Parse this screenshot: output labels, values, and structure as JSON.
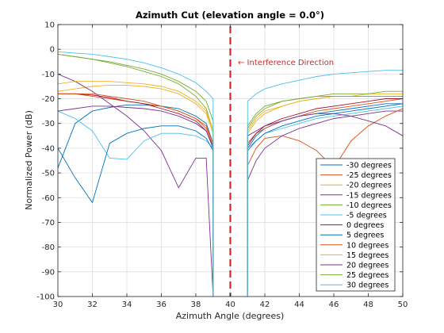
{
  "chart_data": {
    "type": "line",
    "title": "Azimuth Cut (elevation angle = 0.0°)",
    "xlabel": "Azimuth Angle (degrees)",
    "ylabel": "Normalized Power (dB)",
    "xlim": [
      30,
      50
    ],
    "ylim": [
      -100,
      10
    ],
    "xticks": [
      "30",
      "32",
      "34",
      "36",
      "38",
      "40",
      "42",
      "44",
      "46",
      "48",
      "50"
    ],
    "yticks": [
      "-100",
      "-90",
      "-80",
      "-70",
      "-60",
      "-50",
      "-40",
      "-30",
      "-20",
      "-10",
      "0",
      "10"
    ],
    "grid": true,
    "legend_position": "bottom-right",
    "annotation": "← Interference Direction",
    "annotation_color": "#d62728",
    "interference_line": {
      "x": 40,
      "color": "#d62728",
      "style": "dashed"
    },
    "series": [
      {
        "name": "-30 degrees",
        "color": "#0072BD",
        "left": {
          "x": [
            30,
            31,
            32,
            33,
            34,
            35,
            36,
            37,
            38,
            38.6,
            39
          ],
          "y": [
            -48,
            -30,
            -25,
            -23.5,
            -22.5,
            -22.5,
            -23,
            -24,
            -27,
            -30,
            -38
          ]
        },
        "right": {
          "x": [
            41,
            41.5,
            42,
            43,
            44,
            45,
            46,
            47,
            48,
            49,
            50
          ],
          "y": [
            -40,
            -35,
            -32,
            -29,
            -27,
            -26,
            -25,
            -24,
            -23,
            -22,
            -22
          ]
        }
      },
      {
        "name": "-25 degrees",
        "color": "#D95319",
        "left": {
          "x": [
            30,
            31,
            32,
            33,
            34,
            35,
            36,
            37,
            38,
            38.6,
            39
          ],
          "y": [
            -18,
            -18,
            -19,
            -20,
            -21,
            -22,
            -23,
            -25,
            -28,
            -31,
            -38
          ]
        },
        "right": {
          "x": [
            41,
            41.5,
            42,
            43,
            44,
            45,
            46,
            47,
            48,
            49,
            50
          ],
          "y": [
            -38,
            -34,
            -32,
            -29,
            -27,
            -25,
            -24,
            -23,
            -22,
            -21,
            -20
          ]
        }
      },
      {
        "name": "-20 degrees",
        "color": "#EDB120",
        "left": {
          "x": [
            30,
            31,
            32,
            33,
            34,
            35,
            36,
            37,
            38,
            38.6,
            39
          ],
          "y": [
            -17,
            -16,
            -15,
            -14.5,
            -14.5,
            -15,
            -16,
            -18,
            -22,
            -26,
            -34
          ]
        },
        "right": {
          "x": [
            41,
            41.5,
            42,
            43,
            44,
            45,
            46,
            47,
            48,
            49,
            50
          ],
          "y": [
            -34,
            -29,
            -26,
            -23,
            -21,
            -20,
            -19,
            -19,
            -18,
            -18,
            -18
          ]
        }
      },
      {
        "name": "-15 degrees",
        "color": "#7E2F8E",
        "left": {
          "x": [
            30,
            31,
            32,
            33,
            34,
            35,
            36,
            37,
            38,
            38.6,
            39
          ],
          "y": [
            -10,
            -13,
            -17,
            -22,
            -27,
            -33,
            -41,
            -56,
            -44,
            -44,
            -100
          ]
        },
        "right": {
          "x": [
            41,
            41.5,
            42,
            43,
            44,
            45,
            46,
            47,
            48,
            49,
            50
          ],
          "y": [
            -53,
            -45,
            -40,
            -35,
            -32,
            -30,
            -28,
            -27,
            -26,
            -25,
            -25
          ]
        }
      },
      {
        "name": "-10 degrees",
        "color": "#77AC30",
        "left": {
          "x": [
            30,
            31,
            32,
            33,
            34,
            35,
            36,
            37,
            38,
            38.6,
            39
          ],
          "y": [
            -2,
            -3,
            -4,
            -5.5,
            -7,
            -9,
            -11,
            -14,
            -19,
            -24,
            -33
          ]
        },
        "right": {
          "x": [
            41,
            41.5,
            42,
            43,
            44,
            45,
            46,
            47,
            48,
            49,
            50
          ],
          "y": [
            -32,
            -27,
            -24,
            -21,
            -20,
            -19,
            -18,
            -18,
            -18,
            -17,
            -17
          ]
        }
      },
      {
        "name": "-5 degrees",
        "color": "#4DBEEE",
        "left": {
          "x": [
            30,
            31,
            32,
            33,
            34,
            35,
            36,
            37,
            38,
            38.6,
            39
          ],
          "y": [
            -25,
            -28,
            -33,
            -44,
            -44.5,
            -37,
            -34,
            -34,
            -35,
            -37,
            -40
          ]
        },
        "right": {
          "x": [
            41,
            41.5,
            42,
            43,
            44,
            45,
            46,
            47,
            48,
            49,
            50
          ],
          "y": [
            -40,
            -37,
            -34,
            -32,
            -30,
            -28,
            -27,
            -26,
            -25,
            -24,
            -23
          ]
        }
      },
      {
        "name": "0 degrees",
        "color": "#A2142F",
        "left": {
          "x": [
            30,
            31,
            32,
            33,
            34,
            35,
            36,
            37,
            38,
            38.6,
            39
          ],
          "y": [
            -18,
            -18,
            -18.5,
            -19.5,
            -21,
            -22,
            -24,
            -26,
            -29,
            -33,
            -39
          ]
        },
        "right": {
          "x": [
            41,
            41.5,
            42,
            43,
            44,
            45,
            46,
            47,
            48,
            49,
            50
          ],
          "y": [
            -39,
            -34,
            -31,
            -28,
            -26,
            -24,
            -23,
            -22,
            -21,
            -20,
            -20
          ]
        }
      },
      {
        "name": "5 degrees",
        "color": "#0072BD",
        "left": {
          "x": [
            30,
            31,
            32,
            33,
            34,
            35,
            36,
            37,
            38,
            38.6,
            39
          ],
          "y": [
            -40,
            -52,
            -62,
            -38,
            -34,
            -32,
            -31,
            -31,
            -33,
            -36,
            -41
          ]
        },
        "right": {
          "x": [
            41,
            41.5,
            42,
            43,
            44,
            45,
            46,
            47,
            48,
            49,
            50
          ],
          "y": [
            -41,
            -37,
            -34,
            -31,
            -29,
            -27,
            -26,
            -25,
            -24,
            -23,
            -22
          ]
        }
      },
      {
        "name": "10 degrees",
        "color": "#D95319",
        "left": {
          "x": [
            30,
            31,
            32,
            33,
            34,
            35,
            36,
            37,
            38,
            38.6,
            39
          ],
          "y": [
            -18,
            -18,
            -18,
            -19,
            -20,
            -21,
            -23,
            -25,
            -28,
            -32,
            -38
          ]
        },
        "right": {
          "x": [
            41,
            41.5,
            42,
            43,
            44,
            45,
            46,
            47,
            48,
            49,
            50
          ],
          "y": [
            -47,
            -40,
            -36,
            -35,
            -37,
            -41,
            -48,
            -37,
            -31,
            -27,
            -24
          ]
        }
      },
      {
        "name": "15 degrees",
        "color": "#EDB120",
        "left": {
          "x": [
            30,
            31,
            32,
            33,
            34,
            35,
            36,
            37,
            38,
            38.6,
            39
          ],
          "y": [
            -14,
            -13,
            -13,
            -13,
            -13.5,
            -14,
            -15,
            -17,
            -21,
            -25,
            -33
          ]
        },
        "right": {
          "x": [
            41,
            41.5,
            42,
            43,
            44,
            45,
            46,
            47,
            48,
            49,
            50
          ],
          "y": [
            -33,
            -28,
            -25,
            -23,
            -21,
            -20,
            -19,
            -19,
            -19,
            -19,
            -19
          ]
        }
      },
      {
        "name": "20 degrees",
        "color": "#7E2F8E",
        "left": {
          "x": [
            30,
            31,
            32,
            33,
            34,
            35,
            36,
            37,
            38,
            38.6,
            39
          ],
          "y": [
            -25,
            -24,
            -23,
            -23,
            -23.5,
            -24,
            -25,
            -27,
            -30,
            -33,
            -40
          ]
        },
        "right": {
          "x": [
            41,
            41.5,
            42,
            43,
            44,
            45,
            46,
            47,
            48,
            49,
            50
          ],
          "y": [
            -35,
            -33,
            -31,
            -29,
            -27,
            -26,
            -26,
            -27,
            -29,
            -31,
            -35
          ]
        }
      },
      {
        "name": "25 degrees",
        "color": "#77AC30",
        "left": {
          "x": [
            30,
            31,
            32,
            33,
            34,
            35,
            36,
            37,
            38,
            38.6,
            39
          ],
          "y": [
            -2,
            -3,
            -4,
            -5,
            -6.5,
            -8,
            -10,
            -13,
            -17,
            -21,
            -29
          ]
        },
        "right": {
          "x": [
            41,
            41.5,
            42,
            43,
            44,
            45,
            46,
            47,
            48,
            49,
            50
          ],
          "y": [
            -31,
            -26,
            -23,
            -21,
            -20,
            -19,
            -19,
            -19,
            -19,
            -19,
            -19
          ]
        }
      },
      {
        "name": "30 degrees",
        "color": "#4DBEEE",
        "left": {
          "x": [
            30,
            31,
            32,
            33,
            34,
            35,
            36,
            37,
            38,
            38.6,
            39
          ],
          "y": [
            -1,
            -1.5,
            -2,
            -3,
            -4,
            -5.5,
            -7.5,
            -10,
            -13.5,
            -17,
            -20
          ]
        },
        "right": {
          "x": [
            41,
            41.5,
            42,
            43,
            44,
            45,
            46,
            47,
            48,
            49,
            50
          ],
          "y": [
            -21,
            -18,
            -16,
            -14,
            -12.5,
            -11,
            -10,
            -9.5,
            -9,
            -8.5,
            -8.5
          ]
        }
      }
    ]
  }
}
